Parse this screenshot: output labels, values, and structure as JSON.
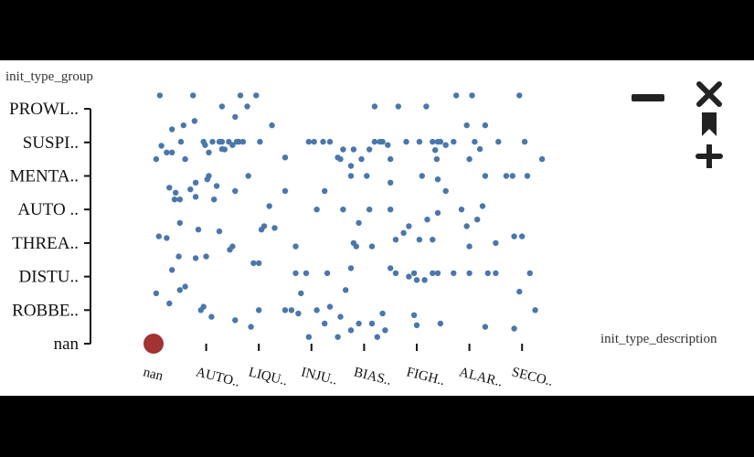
{
  "chart_data": {
    "type": "scatter",
    "ylabel": "init_type_group",
    "xlabel": "init_type_description",
    "y_categories": [
      "nan",
      "ROBBE..",
      "DISTU..",
      "THREA..",
      "AUTO ..",
      "MENTA..",
      "SUSPI..",
      "PROWL.."
    ],
    "x_categories": [
      "nan",
      "AUTO..",
      "LIQU..",
      "INJU..",
      "BIAS..",
      "FIGH..",
      "ALAR..",
      "SECO.."
    ],
    "grid": false,
    "highlight": {
      "label": "nan",
      "x": 0,
      "y": 0,
      "color": "#a33232"
    },
    "points": [
      [
        0.12,
        7.4
      ],
      [
        0.75,
        7.4
      ],
      [
        1.65,
        7.4
      ],
      [
        1.95,
        7.4
      ],
      [
        5.75,
        7.4
      ],
      [
        6.05,
        7.4
      ],
      [
        6.95,
        7.4
      ],
      [
        1.3,
        7.07
      ],
      [
        1.78,
        7.07
      ],
      [
        4.2,
        7.07
      ],
      [
        4.65,
        7.07
      ],
      [
        5.18,
        7.07
      ],
      [
        1.55,
        6.76
      ],
      [
        0.57,
        6.51
      ],
      [
        0.35,
        6.39
      ],
      [
        2.25,
        6.51
      ],
      [
        5.95,
        6.51
      ],
      [
        6.3,
        6.51
      ],
      [
        0.52,
        6.02
      ],
      [
        1.25,
        6.02
      ],
      [
        2.02,
        6.02
      ],
      [
        1.62,
        6.02
      ],
      [
        0.78,
        6.64
      ],
      [
        1.43,
        6.02
      ],
      [
        1.58,
        6.02
      ],
      [
        1.12,
        6.02
      ],
      [
        0.95,
        6.02
      ],
      [
        1.7,
        6.02
      ],
      [
        2.95,
        6.02
      ],
      [
        3.05,
        6.02
      ],
      [
        3.35,
        6.02
      ],
      [
        4.2,
        6.02
      ],
      [
        4.3,
        6.02
      ],
      [
        4.35,
        6.02
      ],
      [
        4.8,
        6.02
      ],
      [
        6.1,
        6.02
      ],
      [
        6.55,
        6.02
      ],
      [
        7.05,
        6.02
      ],
      [
        1.3,
        6.02
      ],
      [
        5.7,
        6.02
      ],
      [
        3.22,
        6.02
      ],
      [
        5.4,
        6.02
      ],
      [
        5.3,
        6.02
      ],
      [
        5.45,
        6.02
      ],
      [
        5.05,
        6.02
      ],
      [
        0.98,
        5.92
      ],
      [
        1.5,
        5.92
      ],
      [
        4.45,
        5.92
      ],
      [
        5.55,
        5.92
      ],
      [
        1.35,
        5.79
      ],
      [
        3.6,
        5.79
      ],
      [
        3.8,
        5.79
      ],
      [
        4.1,
        5.79
      ],
      [
        5.35,
        5.77
      ],
      [
        6.2,
        5.8
      ],
      [
        0.35,
        5.7
      ],
      [
        0.05,
        5.5
      ],
      [
        0.6,
        5.5
      ],
      [
        3.55,
        5.5
      ],
      [
        3.95,
        5.5
      ],
      [
        4.5,
        5.5
      ],
      [
        5.38,
        5.5
      ],
      [
        6.0,
        5.5
      ],
      [
        7.38,
        5.5
      ],
      [
        1.05,
        5.0
      ],
      [
        1.8,
        5.0
      ],
      [
        3.75,
        5.0
      ],
      [
        4.05,
        5.0
      ],
      [
        5.1,
        5.0
      ],
      [
        6.3,
        5.0
      ],
      [
        6.7,
        5.0
      ],
      [
        6.82,
        5.0
      ],
      [
        7.1,
        5.0
      ],
      [
        3.75,
        5.3
      ],
      [
        2.5,
        5.55
      ],
      [
        3.5,
        5.55
      ],
      [
        1.3,
        5.8
      ],
      [
        0.15,
        5.9
      ],
      [
        0.25,
        5.7
      ],
      [
        1.05,
        5.7
      ],
      [
        1.2,
        4.7
      ],
      [
        1.55,
        4.55
      ],
      [
        2.5,
        4.55
      ],
      [
        3.25,
        4.55
      ],
      [
        5.55,
        4.55
      ],
      [
        5.4,
        4.9
      ],
      [
        0.7,
        4.6
      ],
      [
        0.3,
        4.65
      ],
      [
        0.8,
        4.8
      ],
      [
        1.02,
        4.9
      ],
      [
        4.5,
        4.8
      ],
      [
        0.8,
        4.38
      ],
      [
        1.15,
        4.3
      ],
      [
        0.4,
        4.3
      ],
      [
        0.5,
        4.3
      ],
      [
        0.42,
        4.5
      ],
      [
        2.2,
        4.1
      ],
      [
        3.1,
        4.0
      ],
      [
        3.6,
        4.0
      ],
      [
        4.1,
        4.0
      ],
      [
        4.5,
        4.0
      ],
      [
        5.85,
        4.0
      ],
      [
        6.25,
        4.1
      ],
      [
        0.1,
        3.2
      ],
      [
        0.25,
        3.15
      ],
      [
        0.5,
        3.6
      ],
      [
        1.5,
        2.9
      ],
      [
        2.7,
        2.9
      ],
      [
        3.85,
        2.9
      ],
      [
        4.15,
        2.9
      ],
      [
        4.6,
        3.1
      ],
      [
        4.85,
        3.5
      ],
      [
        5.2,
        3.7
      ],
      [
        5.4,
        3.9
      ],
      [
        6.85,
        3.2
      ],
      [
        7.0,
        3.2
      ],
      [
        5.95,
        3.5
      ],
      [
        6.15,
        3.7
      ],
      [
        2.05,
        3.4
      ],
      [
        3.9,
        3.6
      ],
      [
        2.3,
        3.45
      ],
      [
        2.1,
        3.5
      ],
      [
        4.75,
        3.3
      ],
      [
        5.05,
        3.1
      ],
      [
        5.3,
        3.1
      ],
      [
        0.85,
        3.4
      ],
      [
        1.25,
        3.35
      ],
      [
        0.8,
        2.55
      ],
      [
        1.0,
        2.6
      ],
      [
        1.9,
        2.4
      ],
      [
        2.0,
        2.4
      ],
      [
        2.7,
        2.1
      ],
      [
        2.9,
        2.1
      ],
      [
        3.3,
        2.1
      ],
      [
        5.7,
        2.1
      ],
      [
        6.0,
        2.1
      ],
      [
        6.35,
        2.1
      ],
      [
        6.5,
        2.1
      ],
      [
        7.15,
        2.1
      ],
      [
        4.6,
        2.1
      ],
      [
        5.4,
        2.1
      ],
      [
        1.45,
        2.8
      ],
      [
        3.75,
        2.25
      ],
      [
        4.5,
        2.25
      ],
      [
        4.95,
        2.1
      ],
      [
        5.3,
        2.1
      ],
      [
        0.35,
        2.2
      ],
      [
        0.48,
        2.6
      ],
      [
        0.6,
        1.7
      ],
      [
        0.95,
        1.1
      ],
      [
        2.0,
        1.0
      ],
      [
        2.5,
        1.0
      ],
      [
        2.62,
        1.0
      ],
      [
        3.1,
        1.0
      ],
      [
        3.55,
        0.8
      ],
      [
        4.35,
        0.9
      ],
      [
        4.95,
        0.85
      ],
      [
        6.95,
        1.55
      ],
      [
        7.25,
        1.0
      ],
      [
        5.0,
        1.9
      ],
      [
        5.15,
        1.9
      ],
      [
        4.85,
        2.0
      ],
      [
        3.65,
        1.6
      ],
      [
        2.8,
        1.5
      ],
      [
        1.85,
        0.5
      ],
      [
        2.95,
        0.2
      ],
      [
        3.25,
        0.6
      ],
      [
        3.5,
        0.2
      ],
      [
        3.75,
        0.4
      ],
      [
        4.15,
        0.6
      ],
      [
        4.25,
        0.2
      ],
      [
        0.3,
        1.2
      ],
      [
        0.9,
        1.0
      ],
      [
        1.55,
        0.7
      ],
      [
        1.1,
        0.8
      ],
      [
        3.9,
        0.6
      ],
      [
        4.4,
        0.4
      ],
      [
        5.45,
        0.6
      ],
      [
        6.3,
        0.5
      ],
      [
        6.85,
        0.45
      ],
      [
        2.75,
        0.9
      ],
      [
        3.35,
        1.1
      ],
      [
        5.0,
        0.55
      ],
      [
        0.5,
        1.6
      ],
      [
        6.0,
        2.9
      ],
      [
        3.8,
        3.0
      ],
      [
        6.5,
        3.0
      ],
      [
        0.05,
        1.5
      ]
    ]
  },
  "toolbar": {
    "zoom_out_icon": "minus-icon",
    "close_icon": "close-icon",
    "bookmark_icon": "bookmark-icon",
    "zoom_in_icon": "plus-icon"
  }
}
